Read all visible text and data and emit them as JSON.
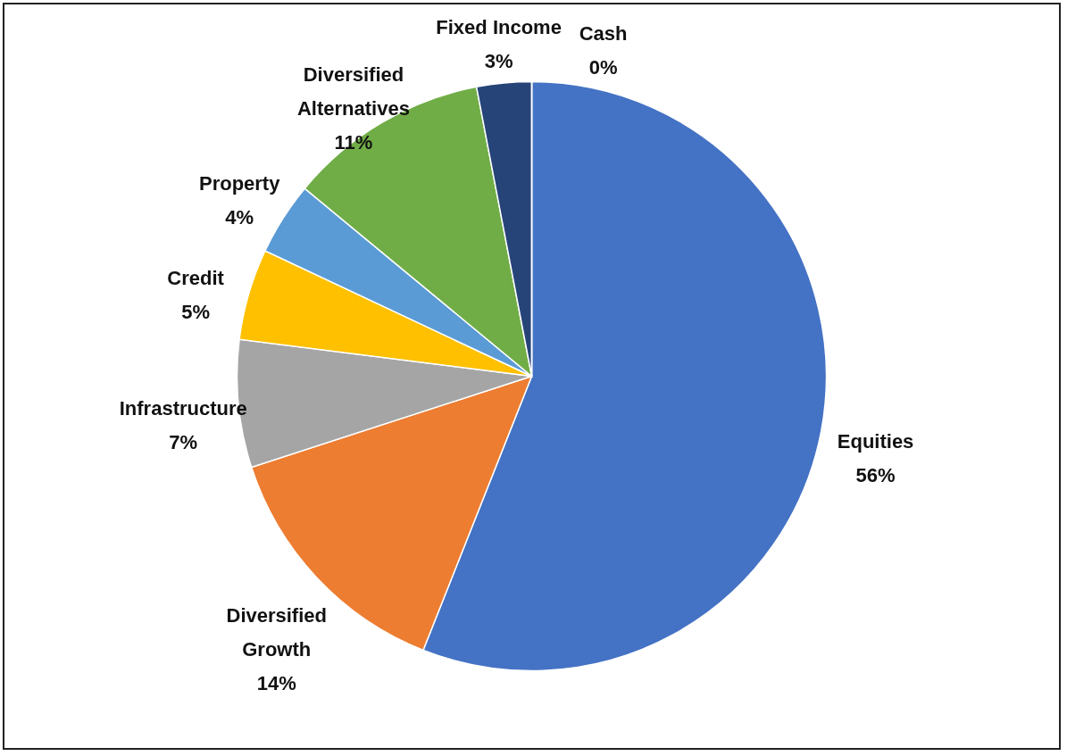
{
  "chart_data": {
    "type": "pie",
    "categories": [
      "Equities",
      "Diversified Growth",
      "Infrastructure",
      "Credit",
      "Property",
      "Diversified Alternatives",
      "Fixed Income",
      "Cash"
    ],
    "values": [
      56,
      14,
      7,
      5,
      4,
      11,
      3,
      0
    ],
    "value_labels": [
      "56%",
      "14%",
      "7%",
      "5%",
      "4%",
      "11%",
      "3%",
      "0%"
    ],
    "colors": [
      "#4472c4",
      "#ed7d31",
      "#a5a5a5",
      "#ffc000",
      "#5b9bd5",
      "#70ad47",
      "#264478",
      "#9e480e"
    ]
  }
}
